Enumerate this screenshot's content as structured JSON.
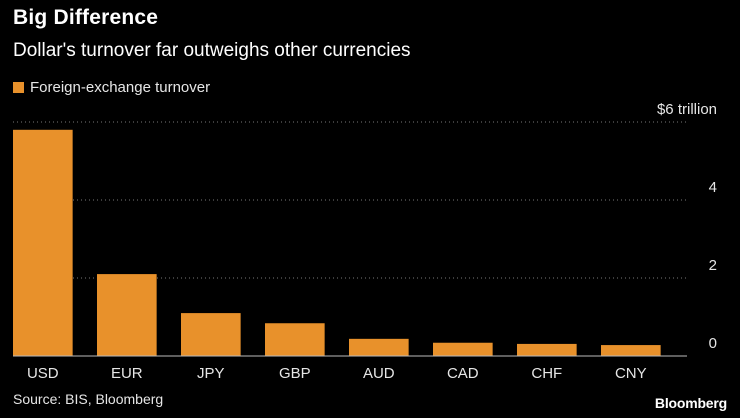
{
  "header": {
    "title": "Big Difference",
    "subtitle": "Dollar's turnover far outweighs other currencies"
  },
  "legend": {
    "label": "Foreign-exchange turnover"
  },
  "footer": {
    "source": "Source: BIS, Bloomberg",
    "brand": "Bloomberg"
  },
  "colors": {
    "bar": "#e8912b",
    "grid": "#777777",
    "background": "#000000"
  },
  "chart_data": {
    "type": "bar",
    "title": "Big Difference",
    "subtitle": "Dollar's turnover far outweighs other currencies",
    "xlabel": "",
    "ylabel": "",
    "categories": [
      "USD",
      "EUR",
      "JPY",
      "GBP",
      "AUD",
      "CAD",
      "CHF",
      "CNY"
    ],
    "series": [
      {
        "name": "Foreign-exchange turnover",
        "values": [
          5.8,
          2.1,
          1.1,
          0.84,
          0.44,
          0.34,
          0.31,
          0.28
        ]
      }
    ],
    "ylim": [
      0,
      6
    ],
    "yticks": [
      0,
      2,
      4,
      6
    ],
    "ytick_labels": [
      "0",
      "2",
      "4",
      "$6 trillion"
    ],
    "grid": true,
    "legend_position": "top-left",
    "y_axis_side": "right"
  }
}
